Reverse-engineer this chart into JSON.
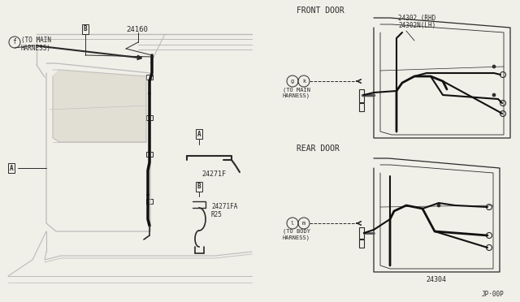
{
  "bg_color": "#f0efe8",
  "lc": "#2a2a2a",
  "gray": "#888888",
  "lgray": "#bbbbbb",
  "labels": {
    "front_door": "FRONT DOOR",
    "rear_door": "REAR DOOR",
    "part_24160": "24160",
    "part_24302": "24302 (RHD",
    "part_24302n": "24302N(LH)",
    "part_24271F": "24271F",
    "part_24271FA": "24271FA",
    "part_R25": "R25",
    "part_24304": "24304",
    "ref_jp": "JP·00P",
    "label_f": "f",
    "label_to_main_top": "(TO MAIN\nHARNESS)",
    "label_g": "g",
    "label_k": "k",
    "label_to_main_front": "(TO MAIN\nHARNESS)",
    "label_l": "l",
    "label_m": "m",
    "label_to_body": "(TO BODY\nHARNESS)"
  }
}
